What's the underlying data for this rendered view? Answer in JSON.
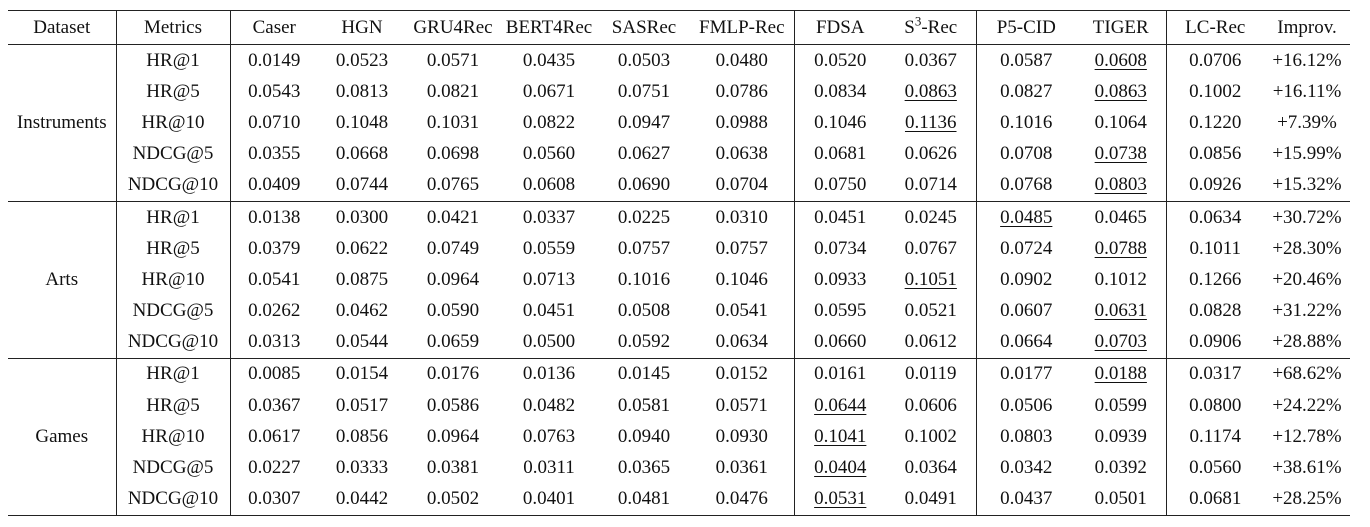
{
  "columns": {
    "dataset": "Dataset",
    "metrics": "Metrics",
    "caser": "Caser",
    "hgn": "HGN",
    "gru4rec": "GRU4Rec",
    "bert4rec": "BERT4Rec",
    "sasrec": "SASRec",
    "fmlp": "FMLP-Rec",
    "fdsa": "FDSA",
    "s3rec_s": "S",
    "s3rec_sup": "3",
    "s3rec_rest": "-Rec",
    "p5cid": "P5-CID",
    "tiger": "TIGER",
    "lcrec": "LC-Rec",
    "improv": "Improv."
  },
  "groups": [
    {
      "name": "Instruments",
      "rows": [
        {
          "metric": "HR@1",
          "caser": "0.0149",
          "hgn": "0.0523",
          "gru4rec": "0.0571",
          "bert4rec": "0.0435",
          "sasrec": "0.0503",
          "fmlp": "0.0480",
          "fdsa": "0.0520",
          "s3rec": "0.0367",
          "p5cid": "0.0587",
          "tiger": "0.0608",
          "lcrec": "0.0706",
          "improv": "+16.12%"
        },
        {
          "metric": "HR@5",
          "caser": "0.0543",
          "hgn": "0.0813",
          "gru4rec": "0.0821",
          "bert4rec": "0.0671",
          "sasrec": "0.0751",
          "fmlp": "0.0786",
          "fdsa": "0.0834",
          "s3rec": "0.0863",
          "p5cid": "0.0827",
          "tiger": "0.0863",
          "lcrec": "0.1002",
          "improv": "+16.11%"
        },
        {
          "metric": "HR@10",
          "caser": "0.0710",
          "hgn": "0.1048",
          "gru4rec": "0.1031",
          "bert4rec": "0.0822",
          "sasrec": "0.0947",
          "fmlp": "0.0988",
          "fdsa": "0.1046",
          "s3rec": "0.1136",
          "p5cid": "0.1016",
          "tiger": "0.1064",
          "lcrec": "0.1220",
          "improv": "+7.39%"
        },
        {
          "metric": "NDCG@5",
          "caser": "0.0355",
          "hgn": "0.0668",
          "gru4rec": "0.0698",
          "bert4rec": "0.0560",
          "sasrec": "0.0627",
          "fmlp": "0.0638",
          "fdsa": "0.0681",
          "s3rec": "0.0626",
          "p5cid": "0.0708",
          "tiger": "0.0738",
          "lcrec": "0.0856",
          "improv": "+15.99%"
        },
        {
          "metric": "NDCG@10",
          "caser": "0.0409",
          "hgn": "0.0744",
          "gru4rec": "0.0765",
          "bert4rec": "0.0608",
          "sasrec": "0.0690",
          "fmlp": "0.0704",
          "fdsa": "0.0750",
          "s3rec": "0.0714",
          "p5cid": "0.0768",
          "tiger": "0.0803",
          "lcrec": "0.0926",
          "improv": "+15.32%"
        }
      ]
    },
    {
      "name": "Arts",
      "rows": [
        {
          "metric": "HR@1",
          "caser": "0.0138",
          "hgn": "0.0300",
          "gru4rec": "0.0421",
          "bert4rec": "0.0337",
          "sasrec": "0.0225",
          "fmlp": "0.0310",
          "fdsa": "0.0451",
          "s3rec": "0.0245",
          "p5cid": "0.0485",
          "tiger": "0.0465",
          "lcrec": "0.0634",
          "improv": "+30.72%"
        },
        {
          "metric": "HR@5",
          "caser": "0.0379",
          "hgn": "0.0622",
          "gru4rec": "0.0749",
          "bert4rec": "0.0559",
          "sasrec": "0.0757",
          "fmlp": "0.0757",
          "fdsa": "0.0734",
          "s3rec": "0.0767",
          "p5cid": "0.0724",
          "tiger": "0.0788",
          "lcrec": "0.1011",
          "improv": "+28.30%"
        },
        {
          "metric": "HR@10",
          "caser": "0.0541",
          "hgn": "0.0875",
          "gru4rec": "0.0964",
          "bert4rec": "0.0713",
          "sasrec": "0.1016",
          "fmlp": "0.1046",
          "fdsa": "0.0933",
          "s3rec": "0.1051",
          "p5cid": "0.0902",
          "tiger": "0.1012",
          "lcrec": "0.1266",
          "improv": "+20.46%"
        },
        {
          "metric": "NDCG@5",
          "caser": "0.0262",
          "hgn": "0.0462",
          "gru4rec": "0.0590",
          "bert4rec": "0.0451",
          "sasrec": "0.0508",
          "fmlp": "0.0541",
          "fdsa": "0.0595",
          "s3rec": "0.0521",
          "p5cid": "0.0607",
          "tiger": "0.0631",
          "lcrec": "0.0828",
          "improv": "+31.22%"
        },
        {
          "metric": "NDCG@10",
          "caser": "0.0313",
          "hgn": "0.0544",
          "gru4rec": "0.0659",
          "bert4rec": "0.0500",
          "sasrec": "0.0592",
          "fmlp": "0.0634",
          "fdsa": "0.0660",
          "s3rec": "0.0612",
          "p5cid": "0.0664",
          "tiger": "0.0703",
          "lcrec": "0.0906",
          "improv": "+28.88%"
        }
      ]
    },
    {
      "name": "Games",
      "rows": [
        {
          "metric": "HR@1",
          "caser": "0.0085",
          "hgn": "0.0154",
          "gru4rec": "0.0176",
          "bert4rec": "0.0136",
          "sasrec": "0.0145",
          "fmlp": "0.0152",
          "fdsa": "0.0161",
          "s3rec": "0.0119",
          "p5cid": "0.0177",
          "tiger": "0.0188",
          "lcrec": "0.0317",
          "improv": "+68.62%"
        },
        {
          "metric": "HR@5",
          "caser": "0.0367",
          "hgn": "0.0517",
          "gru4rec": "0.0586",
          "bert4rec": "0.0482",
          "sasrec": "0.0581",
          "fmlp": "0.0571",
          "fdsa": "0.0644",
          "s3rec": "0.0606",
          "p5cid": "0.0506",
          "tiger": "0.0599",
          "lcrec": "0.0800",
          "improv": "+24.22%"
        },
        {
          "metric": "HR@10",
          "caser": "0.0617",
          "hgn": "0.0856",
          "gru4rec": "0.0964",
          "bert4rec": "0.0763",
          "sasrec": "0.0940",
          "fmlp": "0.0930",
          "fdsa": "0.1041",
          "s3rec": "0.1002",
          "p5cid": "0.0803",
          "tiger": "0.0939",
          "lcrec": "0.1174",
          "improv": "+12.78%"
        },
        {
          "metric": "NDCG@5",
          "caser": "0.0227",
          "hgn": "0.0333",
          "gru4rec": "0.0381",
          "bert4rec": "0.0311",
          "sasrec": "0.0365",
          "fmlp": "0.0361",
          "fdsa": "0.0404",
          "s3rec": "0.0364",
          "p5cid": "0.0342",
          "tiger": "0.0392",
          "lcrec": "0.0560",
          "improv": "+38.61%"
        },
        {
          "metric": "NDCG@10",
          "caser": "0.0307",
          "hgn": "0.0442",
          "gru4rec": "0.0502",
          "bert4rec": "0.0401",
          "sasrec": "0.0481",
          "fmlp": "0.0476",
          "fdsa": "0.0531",
          "s3rec": "0.0491",
          "p5cid": "0.0437",
          "tiger": "0.0501",
          "lcrec": "0.0681",
          "improv": "+28.25%"
        }
      ]
    }
  ],
  "emphasis": {
    "bold": "lcrec",
    "underline": [
      {
        "group": 0,
        "row": 0,
        "col": "tiger"
      },
      {
        "group": 0,
        "row": 1,
        "col": "s3rec"
      },
      {
        "group": 0,
        "row": 1,
        "col": "tiger"
      },
      {
        "group": 0,
        "row": 2,
        "col": "s3rec"
      },
      {
        "group": 0,
        "row": 3,
        "col": "tiger"
      },
      {
        "group": 0,
        "row": 4,
        "col": "tiger"
      },
      {
        "group": 1,
        "row": 0,
        "col": "p5cid"
      },
      {
        "group": 1,
        "row": 1,
        "col": "tiger"
      },
      {
        "group": 1,
        "row": 2,
        "col": "s3rec"
      },
      {
        "group": 1,
        "row": 3,
        "col": "tiger"
      },
      {
        "group": 1,
        "row": 4,
        "col": "tiger"
      },
      {
        "group": 2,
        "row": 0,
        "col": "tiger"
      },
      {
        "group": 2,
        "row": 1,
        "col": "fdsa"
      },
      {
        "group": 2,
        "row": 2,
        "col": "fdsa"
      },
      {
        "group": 2,
        "row": 3,
        "col": "fdsa"
      },
      {
        "group": 2,
        "row": 4,
        "col": "fdsa"
      }
    ]
  }
}
